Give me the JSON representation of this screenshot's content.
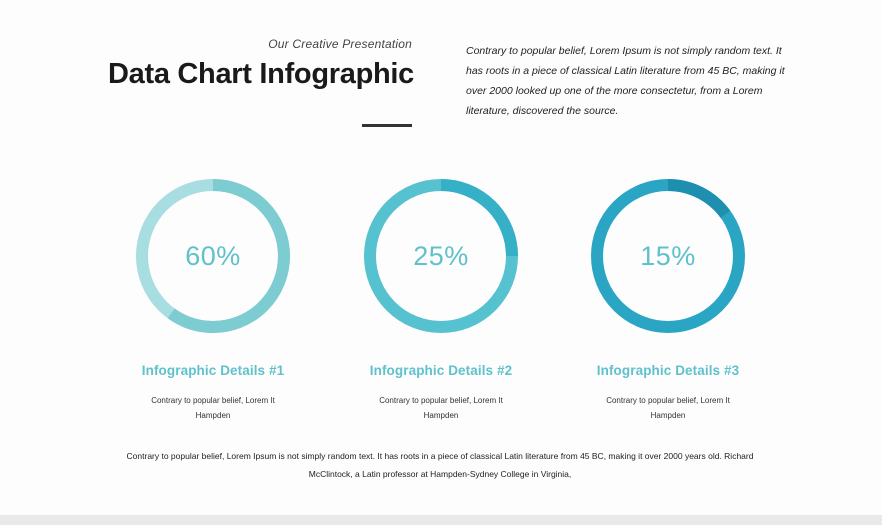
{
  "header": {
    "subtitle": "Our Creative Presentation",
    "title": "Data Chart Infographic",
    "intro": "Contrary to popular belief, Lorem Ipsum is not simply random text. It has roots in a piece of classical Latin literature from 45 BC, making it over 2000 looked up one of the more consectetur, from a Lorem literature, discovered the source."
  },
  "colors": {
    "track_1": "#a8dde1",
    "arc_1": "#7dccd2",
    "track_2": "#56c2cf",
    "arc_2": "#36b0c6",
    "track_3": "#2aa6c4",
    "arc_3": "#1f8fb0",
    "label": "#5fc1cc"
  },
  "chart_data": {
    "type": "pie",
    "categories": [
      "Infographic Details #1",
      "Infographic Details #2",
      "Infographic Details #3"
    ],
    "values": [
      60,
      25,
      15
    ],
    "labels": [
      "60%",
      "25%",
      "15%"
    ],
    "unit": "%"
  },
  "details": [
    {
      "title": "Infographic Details #1",
      "text": "Contrary to popular belief, Lorem It Hampden"
    },
    {
      "title": "Infographic Details #2",
      "text": "Contrary to popular belief, Lorem It Hampden"
    },
    {
      "title": "Infographic Details #3",
      "text": "Contrary to popular belief, Lorem It Hampden"
    }
  ],
  "footer": {
    "text": "Contrary to popular belief, Lorem Ipsum is not simply random text. It has roots in a piece of classical Latin literature from 45 BC, making it over 2000 years old. Richard McClintock, a Latin professor at Hampden-Sydney College in Virginia,"
  }
}
